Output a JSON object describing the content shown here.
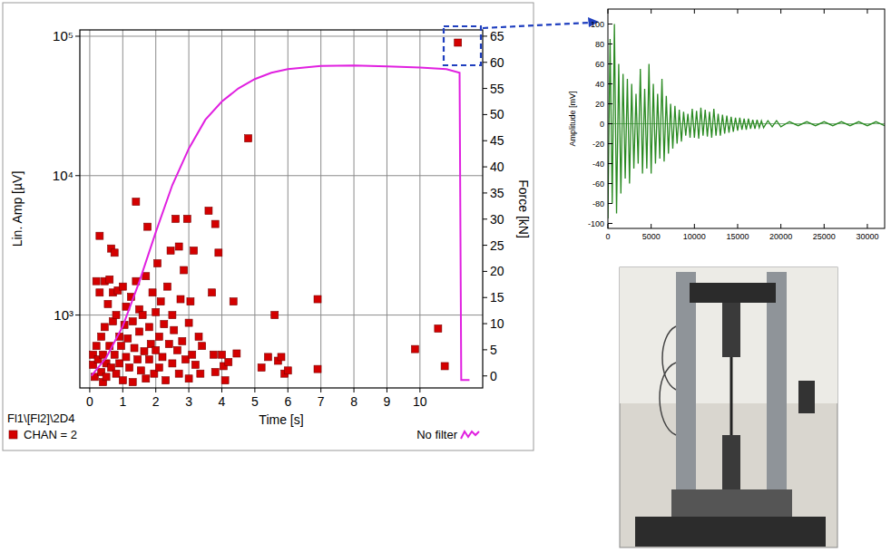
{
  "chart_data": [
    {
      "type": "scatter",
      "subtitle": "Fl1\\[Fl2]\\2D4",
      "x_label": "Time [s]",
      "y_label": "Lin. Amp [µV]",
      "y2_label": "Force [kN]",
      "log": "y",
      "grid": true,
      "legend": "bottom",
      "xlim": [
        -0.3,
        11.9
      ],
      "xticks": [
        0,
        1,
        2,
        3,
        4,
        5,
        6,
        7,
        8,
        9,
        10
      ],
      "ylim": [
        300,
        111000
      ],
      "yticks": [
        {
          "value": 1000,
          "label": "10³"
        },
        {
          "value": 10000,
          "label": "10⁴"
        },
        {
          "value": 100000,
          "label": "10⁵"
        }
      ],
      "y2lim": [
        -2.3,
        66.2
      ],
      "y2ticks": [
        0,
        5,
        10,
        15,
        20,
        25,
        30,
        35,
        40,
        45,
        50,
        55,
        60,
        65
      ],
      "series": [
        {
          "name": "CHAN = 2",
          "type": "scatter",
          "color": "#d40000",
          "marker": "square",
          "x": [
            0.1,
            0.1,
            0.15,
            0.2,
            0.2,
            0.25,
            0.3,
            0.3,
            0.35,
            0.35,
            0.4,
            0.4,
            0.45,
            0.45,
            0.5,
            0.5,
            0.55,
            0.6,
            0.6,
            0.65,
            0.65,
            0.7,
            0.7,
            0.75,
            0.75,
            0.8,
            0.8,
            0.85,
            0.9,
            0.9,
            0.95,
            1.0,
            1.0,
            1.05,
            1.1,
            1.1,
            1.15,
            1.2,
            1.25,
            1.3,
            1.3,
            1.35,
            1.4,
            1.4,
            1.45,
            1.5,
            1.5,
            1.55,
            1.6,
            1.65,
            1.7,
            1.7,
            1.75,
            1.8,
            1.8,
            1.85,
            1.9,
            1.95,
            2.0,
            2.0,
            2.05,
            2.1,
            2.1,
            2.15,
            2.2,
            2.25,
            2.3,
            2.35,
            2.4,
            2.45,
            2.5,
            2.5,
            2.55,
            2.6,
            2.65,
            2.7,
            2.7,
            2.75,
            2.8,
            2.85,
            2.9,
            2.95,
            3.0,
            3.0,
            3.05,
            3.1,
            3.15,
            3.2,
            3.3,
            3.35,
            3.4,
            3.6,
            3.7,
            3.75,
            3.8,
            3.8,
            3.9,
            4.0,
            4.05,
            4.1,
            4.2,
            4.35,
            4.45,
            4.8,
            5.2,
            5.4,
            5.6,
            5.7,
            5.8,
            5.9,
            6.0,
            6.9,
            6.9,
            9.85,
            10.55,
            10.75,
            11.15
          ],
          "values": [
            520,
            440,
            360,
            1750,
            600,
            480,
            3700,
            1450,
            700,
            390,
            520,
            330,
            1750,
            820,
            450,
            360,
            1200,
            1800,
            600,
            3000,
            420,
            1450,
            900,
            2800,
            520,
            1000,
            380,
            1500,
            700,
            450,
            600,
            1600,
            340,
            850,
            500,
            1150,
            680,
            420,
            1350,
            900,
            330,
            580,
            6500,
            1750,
            480,
            760,
            1100,
            400,
            1000,
            550,
            1900,
            350,
            4300,
            820,
            480,
            620,
            1450,
            380,
            1050,
            560,
            2350,
            700,
            420,
            1250,
            500,
            860,
            340,
            1600,
            620,
            2900,
            450,
            1000,
            780,
            4900,
            560,
            3100,
            380,
            1300,
            650,
            2100,
            480,
            4900,
            880,
            350,
            1250,
            520,
            2900,
            440,
            700,
            380,
            600,
            5600,
            1450,
            520,
            4500,
            390,
            2800,
            520,
            430,
            340,
            460,
            1250,
            530,
            18500,
            420,
            500,
            1000,
            470,
            500,
            380,
            400,
            1300,
            410,
            570,
            800,
            430,
            90000
          ]
        },
        {
          "name": "No filter",
          "type": "line",
          "axis": "y2",
          "color": "#e020e0",
          "line_style": "solid",
          "x": [
            0.05,
            0.5,
            1,
            1.5,
            2,
            2.5,
            3,
            3.5,
            4,
            4.5,
            5,
            5.5,
            6,
            7,
            8,
            9,
            10,
            10.8,
            11.2,
            11.25,
            11.5
          ],
          "values": [
            0,
            3.5,
            9.5,
            18,
            27.5,
            36.5,
            43.5,
            49,
            52.5,
            55,
            56.8,
            58,
            58.7,
            59.3,
            59.4,
            59.2,
            59,
            58.7,
            58,
            -0.8,
            -0.8
          ]
        }
      ]
    },
    {
      "type": "line",
      "y_label": "Amplitude [mV]",
      "color": "#2a8a22",
      "xlim": [
        0,
        32000
      ],
      "xticks": [
        0,
        5000,
        10000,
        15000,
        20000,
        25000,
        30000
      ],
      "ylim": [
        -105,
        115
      ],
      "yticks": [
        -100,
        -80,
        -60,
        -40,
        -20,
        0,
        20,
        40,
        60,
        80,
        100
      ],
      "x": [
        0,
        250,
        500,
        750,
        1000,
        1250,
        1500,
        1750,
        2000,
        2250,
        2500,
        2750,
        3000,
        3250,
        3500,
        3750,
        4000,
        4250,
        4500,
        4750,
        5000,
        5250,
        5500,
        5750,
        6000,
        6250,
        6500,
        6750,
        7000,
        7250,
        7500,
        7750,
        8000,
        8250,
        8500,
        8750,
        9000,
        9250,
        9500,
        9750,
        10000,
        10250,
        10500,
        10750,
        11000,
        11250,
        11500,
        11750,
        12000,
        12250,
        12500,
        12750,
        13000,
        13250,
        13500,
        13750,
        14000,
        14250,
        14500,
        14750,
        15000,
        15250,
        15500,
        15750,
        16000,
        16250,
        16500,
        16750,
        17000,
        17250,
        17500,
        17750,
        18000,
        18500,
        19000,
        19500,
        20000,
        21000,
        22000,
        23000,
        24000,
        25000,
        26000,
        27000,
        28000,
        29000,
        30000,
        31000,
        32000
      ],
      "values": [
        -95,
        85,
        -80,
        100,
        -90,
        60,
        -70,
        50,
        -55,
        45,
        -60,
        40,
        -45,
        30,
        -40,
        55,
        -50,
        35,
        -45,
        60,
        -50,
        40,
        -40,
        30,
        -35,
        45,
        -38,
        28,
        -30,
        20,
        -25,
        18,
        -20,
        14,
        -18,
        12,
        -12,
        10,
        -14,
        15,
        -14,
        13,
        -15,
        16,
        -12,
        14,
        -13,
        12,
        -14,
        15,
        -12,
        10,
        -12,
        9,
        -10,
        8,
        -9,
        7,
        -8,
        6,
        -7,
        6,
        -6,
        5,
        -6,
        5,
        -5,
        4,
        -5,
        4,
        -4,
        3,
        -4,
        3,
        -3,
        3,
        -3,
        2,
        -2,
        2,
        -2,
        2,
        -2,
        2,
        -2,
        2,
        -2,
        2,
        -2
      ]
    }
  ]
}
